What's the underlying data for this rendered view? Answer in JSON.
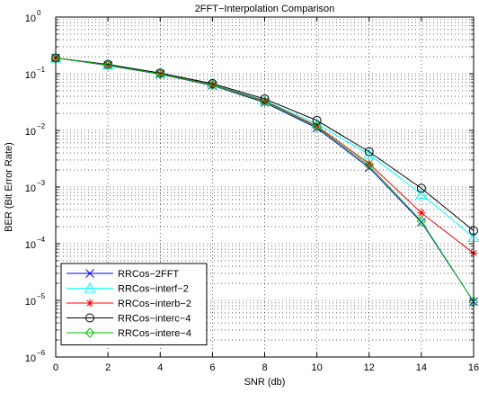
{
  "chart_data": {
    "type": "line",
    "title": "2FFT−Interpolation Comparison",
    "xlabel": "SNR (db)",
    "ylabel": "BER (Bit Error Rate)",
    "x_scale": "linear",
    "y_scale": "log",
    "xlim": [
      0,
      16
    ],
    "ylim": [
      1e-06,
      1
    ],
    "x_ticks": [
      "0",
      "2",
      "4",
      "6",
      "8",
      "10",
      "12",
      "14",
      "16"
    ],
    "y_ticks": [
      {
        "base": "10",
        "exp": "0"
      },
      {
        "base": "10",
        "exp": "−1"
      },
      {
        "base": "10",
        "exp": "−2"
      },
      {
        "base": "10",
        "exp": "−3"
      },
      {
        "base": "10",
        "exp": "−4"
      },
      {
        "base": "10",
        "exp": "−5"
      },
      {
        "base": "10",
        "exp": "−6"
      }
    ],
    "grid": true,
    "legend_position": "bottom-left",
    "x": [
      0,
      2,
      4,
      6,
      8,
      10,
      12,
      14,
      16
    ],
    "series": [
      {
        "name": "RRCos−2FFT",
        "color": "#0000ff",
        "marker": "x",
        "values": [
          0.19,
          0.14,
          0.098,
          0.062,
          0.031,
          0.011,
          0.0022,
          0.00024,
          9.5e-06
        ]
      },
      {
        "name": "RRCos−interf−2",
        "color": "#00ffff",
        "marker": "triangle",
        "values": [
          0.19,
          0.145,
          0.102,
          0.066,
          0.034,
          0.013,
          0.0038,
          0.00075,
          0.00013
        ]
      },
      {
        "name": "RRCos−interb−2",
        "color": "#ff0000",
        "marker": "star",
        "values": [
          0.19,
          0.143,
          0.1,
          0.064,
          0.033,
          0.012,
          0.0026,
          0.00035,
          6.8e-05
        ]
      },
      {
        "name": "RRCos−interc−4",
        "color": "#000000",
        "marker": "circle",
        "values": [
          0.19,
          0.146,
          0.103,
          0.067,
          0.036,
          0.015,
          0.0042,
          0.00095,
          0.00017
        ]
      },
      {
        "name": "RRCos−intere−4",
        "color": "#00c000",
        "marker": "diamond",
        "values": [
          0.19,
          0.142,
          0.099,
          0.063,
          0.032,
          0.0115,
          0.0024,
          0.00025,
          9.5e-06
        ]
      }
    ]
  }
}
